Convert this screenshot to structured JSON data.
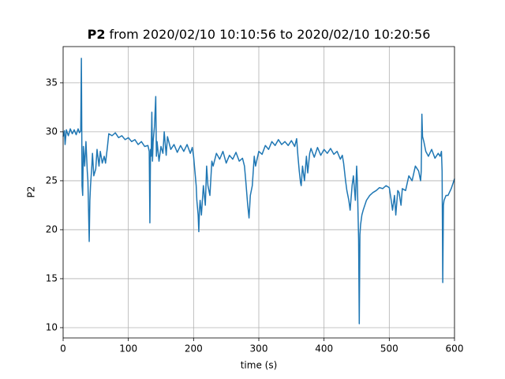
{
  "chart_data": {
    "type": "line",
    "title": {
      "bold": "P2",
      "rest": "from 2020/02/10 10:10:56 to 2020/02/10 10:20:56"
    },
    "xlabel": "time (s)",
    "ylabel": "P2",
    "xlim": [
      0,
      600
    ],
    "ylim": [
      8.95,
      38.7
    ],
    "xticks": [
      0,
      100,
      200,
      300,
      400,
      500,
      600
    ],
    "yticks": [
      10,
      15,
      20,
      25,
      30,
      35
    ],
    "grid": true,
    "series": [
      {
        "name": "P2",
        "color": "#1f77b4",
        "x": [
          0,
          2,
          3,
          5,
          8,
          11,
          14,
          17,
          20,
          23,
          25,
          27,
          28,
          29,
          30,
          31,
          33,
          35,
          37,
          38,
          40,
          41,
          42,
          44,
          45,
          47,
          50,
          52,
          55,
          57,
          60,
          63,
          65,
          68,
          70,
          75,
          80,
          85,
          90,
          95,
          100,
          105,
          110,
          115,
          120,
          125,
          130,
          132,
          133,
          134,
          135,
          136,
          137,
          138,
          140,
          142,
          143,
          144,
          147,
          150,
          153,
          155,
          158,
          160,
          165,
          170,
          175,
          180,
          185,
          190,
          195,
          198,
          200,
          202,
          204,
          205,
          207,
          208,
          209,
          210,
          212,
          215,
          218,
          220,
          222,
          225,
          228,
          230,
          235,
          240,
          245,
          250,
          255,
          260,
          265,
          270,
          275,
          278,
          280,
          283,
          285,
          287,
          290,
          293,
          295,
          300,
          305,
          310,
          315,
          320,
          325,
          330,
          335,
          340,
          345,
          350,
          355,
          358,
          360,
          362,
          364,
          365,
          367,
          370,
          373,
          375,
          378,
          380,
          385,
          390,
          395,
          400,
          405,
          410,
          415,
          420,
          425,
          428,
          430,
          433,
          435,
          438,
          440,
          443,
          445,
          448,
          450,
          451,
          452,
          453,
          454,
          455,
          456,
          458,
          460,
          465,
          470,
          475,
          480,
          485,
          490,
          495,
          500,
          503,
          505,
          508,
          510,
          513,
          515,
          518,
          520,
          525,
          530,
          535,
          540,
          545,
          548,
          549,
          550,
          551,
          553,
          556,
          560,
          565,
          570,
          575,
          578,
          580,
          581,
          582,
          583,
          584,
          587,
          590,
          595,
          600
        ],
        "values": [
          29.5,
          30.1,
          28.7,
          30.2,
          29.6,
          30.3,
          29.8,
          30.2,
          29.7,
          30.3,
          29.9,
          30.1,
          37.5,
          24.5,
          23.5,
          28.5,
          26.5,
          29,
          26,
          25,
          18.8,
          23,
          24.5,
          26.5,
          27.8,
          25.5,
          26.2,
          28.2,
          26.5,
          28,
          26.8,
          27.5,
          26.8,
          28.5,
          29.8,
          29.6,
          29.9,
          29.4,
          29.6,
          29.2,
          29.4,
          29,
          29.2,
          28.7,
          29,
          28.5,
          28.6,
          28,
          20.7,
          28.2,
          27.5,
          32,
          27,
          29,
          30.5,
          33.6,
          27.5,
          29,
          27,
          28.5,
          27.8,
          30,
          27.6,
          29.5,
          28.2,
          28.7,
          27.9,
          28.6,
          28,
          28.7,
          27.8,
          28.4,
          27.5,
          26,
          24.5,
          23,
          21.5,
          19.8,
          22,
          23,
          21.5,
          24.5,
          22.5,
          26.5,
          24.5,
          23.5,
          27,
          26.5,
          27.8,
          27.2,
          28,
          26.8,
          27.6,
          27.2,
          27.9,
          27,
          27.3,
          26.5,
          25,
          22.5,
          21.2,
          23.5,
          24.5,
          27.5,
          26.5,
          28,
          27.7,
          28.6,
          28.2,
          29,
          28.6,
          29.2,
          28.7,
          29,
          28.6,
          29.1,
          28.5,
          29.3,
          27.5,
          26,
          24.8,
          24.5,
          26.5,
          25,
          27.5,
          25.8,
          27.8,
          28.3,
          27.4,
          28.4,
          27.6,
          28.2,
          27.8,
          28.3,
          27.7,
          28,
          27.2,
          27.6,
          26.8,
          25,
          24,
          23,
          22,
          24.5,
          25.5,
          23,
          26.5,
          25,
          22,
          19,
          10.4,
          19.5,
          20.5,
          21.5,
          22,
          23,
          23.5,
          23.8,
          24,
          24.3,
          24.2,
          24.5,
          24.3,
          23,
          22,
          23.5,
          21.5,
          24,
          23.8,
          22.5,
          24.2,
          24,
          25.5,
          25,
          26.5,
          26,
          25,
          26,
          31.8,
          29.5,
          29,
          28,
          27.5,
          28.2,
          27.3,
          27.8,
          27.5,
          28,
          26,
          14.6,
          22.5,
          23,
          23.5,
          23.5,
          24.2,
          25.2
        ]
      }
    ]
  }
}
